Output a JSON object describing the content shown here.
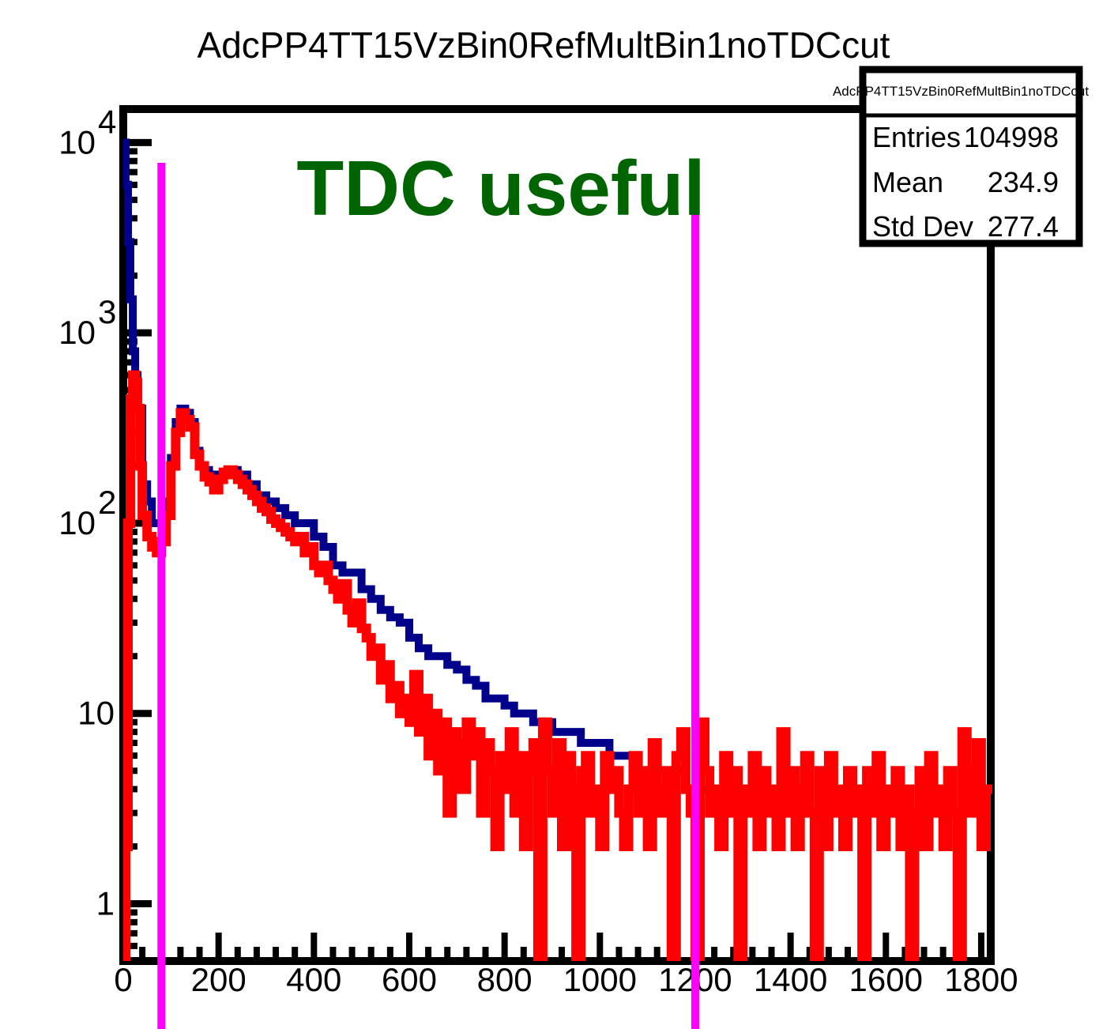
{
  "chart_data": {
    "type": "histogram",
    "title": "AdcPP4TT15VzBin0RefMultBin1noTDCcut",
    "xlabel": "",
    "ylabel": "",
    "xlim": [
      0,
      1820
    ],
    "ylim": [
      0.5,
      15000
    ],
    "y_scale": "log",
    "grid": false,
    "x_ticks": [
      {
        "value": 0,
        "label": "0"
      },
      {
        "value": 200,
        "label": "200"
      },
      {
        "value": 400,
        "label": "400"
      },
      {
        "value": 600,
        "label": "600"
      },
      {
        "value": 800,
        "label": "800"
      },
      {
        "value": 1000,
        "label": "1000"
      },
      {
        "value": 1200,
        "label": "1200"
      },
      {
        "value": 1400,
        "label": "1400"
      },
      {
        "value": 1600,
        "label": "1600"
      },
      {
        "value": 1800,
        "label": "1800"
      }
    ],
    "y_ticks": [
      {
        "value": 10000,
        "base": "10",
        "exp": "4"
      },
      {
        "value": 1000,
        "base": "10",
        "exp": "3"
      },
      {
        "value": 100,
        "base": "10",
        "exp": "2"
      },
      {
        "value": 10,
        "base": "10",
        "exp": ""
      },
      {
        "value": 1,
        "base": "1",
        "exp": ""
      }
    ],
    "series": [
      {
        "color": "#00008b",
        "points": [
          [
            0,
            10000
          ],
          [
            5,
            6000
          ],
          [
            10,
            3000
          ],
          [
            15,
            1500
          ],
          [
            20,
            800
          ],
          [
            25,
            600
          ],
          [
            30,
            400
          ],
          [
            40,
            160
          ],
          [
            50,
            130
          ],
          [
            60,
            100
          ],
          [
            70,
            100
          ],
          [
            80,
            110
          ],
          [
            90,
            130
          ],
          [
            100,
            220
          ],
          [
            110,
            340
          ],
          [
            120,
            400
          ],
          [
            130,
            380
          ],
          [
            140,
            340
          ],
          [
            150,
            240
          ],
          [
            160,
            200
          ],
          [
            170,
            190
          ],
          [
            180,
            180
          ],
          [
            200,
            180
          ],
          [
            220,
            190
          ],
          [
            240,
            180
          ],
          [
            260,
            160
          ],
          [
            280,
            140
          ],
          [
            300,
            130
          ],
          [
            320,
            120
          ],
          [
            340,
            110
          ],
          [
            360,
            100
          ],
          [
            380,
            100
          ],
          [
            400,
            85
          ],
          [
            420,
            75
          ],
          [
            440,
            60
          ],
          [
            460,
            55
          ],
          [
            480,
            55
          ],
          [
            500,
            45
          ],
          [
            520,
            40
          ],
          [
            540,
            35
          ],
          [
            560,
            32
          ],
          [
            580,
            30
          ],
          [
            600,
            25
          ],
          [
            620,
            22
          ],
          [
            640,
            20
          ],
          [
            660,
            20
          ],
          [
            680,
            18
          ],
          [
            700,
            17
          ],
          [
            720,
            15
          ],
          [
            740,
            14
          ],
          [
            760,
            12
          ],
          [
            780,
            12
          ],
          [
            800,
            11
          ],
          [
            820,
            10
          ],
          [
            840,
            10
          ],
          [
            860,
            9
          ],
          [
            880,
            9
          ],
          [
            900,
            8
          ],
          [
            920,
            8
          ],
          [
            940,
            8
          ],
          [
            960,
            7
          ],
          [
            980,
            7
          ],
          [
            1000,
            7
          ],
          [
            1020,
            6
          ],
          [
            1040,
            6
          ],
          [
            1060,
            6
          ],
          [
            1080,
            5
          ],
          [
            1100,
            5
          ],
          [
            1120,
            5
          ],
          [
            1140,
            5
          ],
          [
            1160,
            5
          ],
          [
            1180,
            4
          ],
          [
            1200,
            4
          ],
          [
            1220,
            4
          ],
          [
            1240,
            4
          ],
          [
            1260,
            4
          ],
          [
            1280,
            4
          ],
          [
            1300,
            4
          ],
          [
            1320,
            3
          ],
          [
            1340,
            3
          ],
          [
            1360,
            3
          ],
          [
            1380,
            3
          ],
          [
            1400,
            3
          ],
          [
            1420,
            3
          ],
          [
            1440,
            3
          ],
          [
            1460,
            3
          ],
          [
            1480,
            3
          ],
          [
            1500,
            3
          ],
          [
            1520,
            3
          ],
          [
            1540,
            3
          ],
          [
            1560,
            3
          ],
          [
            1580,
            3
          ],
          [
            1600,
            3
          ],
          [
            1620,
            3
          ],
          [
            1640,
            3
          ],
          [
            1660,
            3
          ],
          [
            1680,
            3
          ],
          [
            1700,
            3
          ],
          [
            1720,
            3
          ],
          [
            1740,
            3
          ],
          [
            1760,
            3
          ],
          [
            1780,
            3
          ],
          [
            1800,
            3
          ]
        ]
      },
      {
        "color": "#ff0000",
        "points": [
          [
            0,
            0.5
          ],
          [
            5,
            2
          ],
          [
            10,
            100
          ],
          [
            15,
            450
          ],
          [
            20,
            600
          ],
          [
            25,
            550
          ],
          [
            30,
            400
          ],
          [
            35,
            200
          ],
          [
            40,
            110
          ],
          [
            50,
            85
          ],
          [
            60,
            75
          ],
          [
            70,
            70
          ],
          [
            80,
            80
          ],
          [
            90,
            110
          ],
          [
            100,
            200
          ],
          [
            110,
            300
          ],
          [
            120,
            380
          ],
          [
            130,
            350
          ],
          [
            140,
            320
          ],
          [
            150,
            230
          ],
          [
            160,
            200
          ],
          [
            170,
            175
          ],
          [
            180,
            165
          ],
          [
            190,
            150
          ],
          [
            200,
            170
          ],
          [
            210,
            185
          ],
          [
            220,
            190
          ],
          [
            230,
            180
          ],
          [
            240,
            170
          ],
          [
            250,
            160
          ],
          [
            260,
            150
          ],
          [
            270,
            140
          ],
          [
            280,
            130
          ],
          [
            290,
            120
          ],
          [
            300,
            115
          ],
          [
            310,
            105
          ],
          [
            320,
            100
          ],
          [
            330,
            95
          ],
          [
            340,
            90
          ],
          [
            350,
            85
          ],
          [
            360,
            80
          ],
          [
            370,
            85
          ],
          [
            380,
            70
          ],
          [
            390,
            75
          ],
          [
            400,
            60
          ],
          [
            410,
            55
          ],
          [
            420,
            60
          ],
          [
            430,
            50
          ],
          [
            440,
            45
          ],
          [
            450,
            40
          ],
          [
            460,
            48
          ],
          [
            470,
            35
          ],
          [
            480,
            30
          ],
          [
            490,
            38
          ],
          [
            500,
            28
          ],
          [
            510,
            25
          ],
          [
            520,
            20
          ],
          [
            530,
            22
          ],
          [
            540,
            15
          ],
          [
            550,
            18
          ],
          [
            560,
            12
          ],
          [
            570,
            14
          ],
          [
            580,
            10
          ],
          [
            590,
            12
          ],
          [
            600,
            9
          ],
          [
            610,
            16
          ],
          [
            620,
            8
          ],
          [
            630,
            12
          ],
          [
            640,
            6
          ],
          [
            650,
            10
          ],
          [
            660,
            5
          ],
          [
            670,
            9
          ],
          [
            680,
            3
          ],
          [
            690,
            8
          ],
          [
            700,
            7
          ],
          [
            710,
            4
          ],
          [
            720,
            9
          ],
          [
            730,
            6
          ],
          [
            740,
            8
          ],
          [
            750,
            3
          ],
          [
            760,
            7
          ],
          [
            770,
            5
          ],
          [
            780,
            2
          ],
          [
            790,
            6
          ],
          [
            800,
            4
          ],
          [
            810,
            8
          ],
          [
            820,
            3
          ],
          [
            830,
            6
          ],
          [
            840,
            2
          ],
          [
            850,
            5
          ],
          [
            860,
            7
          ],
          [
            870,
            0.5
          ],
          [
            880,
            9
          ],
          [
            890,
            5
          ],
          [
            900,
            3
          ],
          [
            910,
            7
          ],
          [
            920,
            2
          ],
          [
            930,
            6
          ],
          [
            940,
            4
          ],
          [
            950,
            0.5
          ],
          [
            960,
            5
          ],
          [
            970,
            6
          ],
          [
            980,
            3
          ],
          [
            990,
            4
          ],
          [
            1000,
            2
          ],
          [
            1010,
            6
          ],
          [
            1020,
            4
          ],
          [
            1030,
            5
          ],
          [
            1040,
            3
          ],
          [
            1050,
            2
          ],
          [
            1060,
            4
          ],
          [
            1070,
            6
          ],
          [
            1080,
            3
          ],
          [
            1090,
            5
          ],
          [
            1100,
            2
          ],
          [
            1110,
            7
          ],
          [
            1120,
            4
          ],
          [
            1130,
            3
          ],
          [
            1140,
            5
          ],
          [
            1150,
            0.5
          ],
          [
            1160,
            6
          ],
          [
            1170,
            8
          ],
          [
            1180,
            4
          ],
          [
            1190,
            3
          ],
          [
            1200,
            0.5
          ],
          [
            1210,
            9
          ],
          [
            1220,
            5
          ],
          [
            1230,
            3
          ],
          [
            1240,
            4
          ],
          [
            1250,
            2
          ],
          [
            1260,
            6
          ],
          [
            1270,
            3
          ],
          [
            1280,
            5
          ],
          [
            1290,
            0.5
          ],
          [
            1300,
            4
          ],
          [
            1310,
            3
          ],
          [
            1320,
            6
          ],
          [
            1330,
            2
          ],
          [
            1340,
            5
          ],
          [
            1350,
            3
          ],
          [
            1360,
            4
          ],
          [
            1370,
            2
          ],
          [
            1380,
            8
          ],
          [
            1390,
            3
          ],
          [
            1400,
            5
          ],
          [
            1410,
            2
          ],
          [
            1420,
            4
          ],
          [
            1430,
            6
          ],
          [
            1440,
            3
          ],
          [
            1450,
            0.5
          ],
          [
            1460,
            5
          ],
          [
            1470,
            2
          ],
          [
            1480,
            6
          ],
          [
            1490,
            3
          ],
          [
            1500,
            4
          ],
          [
            1510,
            2
          ],
          [
            1520,
            5
          ],
          [
            1530,
            3
          ],
          [
            1540,
            4
          ],
          [
            1550,
            0.5
          ],
          [
            1560,
            5
          ],
          [
            1570,
            3
          ],
          [
            1580,
            6
          ],
          [
            1590,
            2
          ],
          [
            1600,
            4
          ],
          [
            1610,
            3
          ],
          [
            1620,
            5
          ],
          [
            1630,
            2
          ],
          [
            1640,
            4
          ],
          [
            1650,
            0.5
          ],
          [
            1660,
            3
          ],
          [
            1670,
            5
          ],
          [
            1680,
            2
          ],
          [
            1690,
            6
          ],
          [
            1700,
            3
          ],
          [
            1710,
            4
          ],
          [
            1720,
            2
          ],
          [
            1730,
            5
          ],
          [
            1740,
            3
          ],
          [
            1750,
            0.5
          ],
          [
            1760,
            8
          ],
          [
            1770,
            3
          ],
          [
            1780,
            5
          ],
          [
            1790,
            7
          ],
          [
            1800,
            2
          ],
          [
            1810,
            4
          ]
        ]
      }
    ],
    "markers": [
      {
        "x": 80,
        "color": "#ff00ff"
      },
      {
        "x": 1200,
        "color": "#ff00ff"
      }
    ],
    "annotation": {
      "text": "TDC useful",
      "color": "#006400"
    },
    "stats_box": {
      "title": "AdcPP4TT15VzBin0RefMultBin1noTDCcut",
      "rows": [
        {
          "label": "Entries",
          "value": "104998"
        },
        {
          "label": "Mean",
          "value": "234.9"
        },
        {
          "label": "Std Dev",
          "value": "277.4"
        }
      ]
    }
  }
}
